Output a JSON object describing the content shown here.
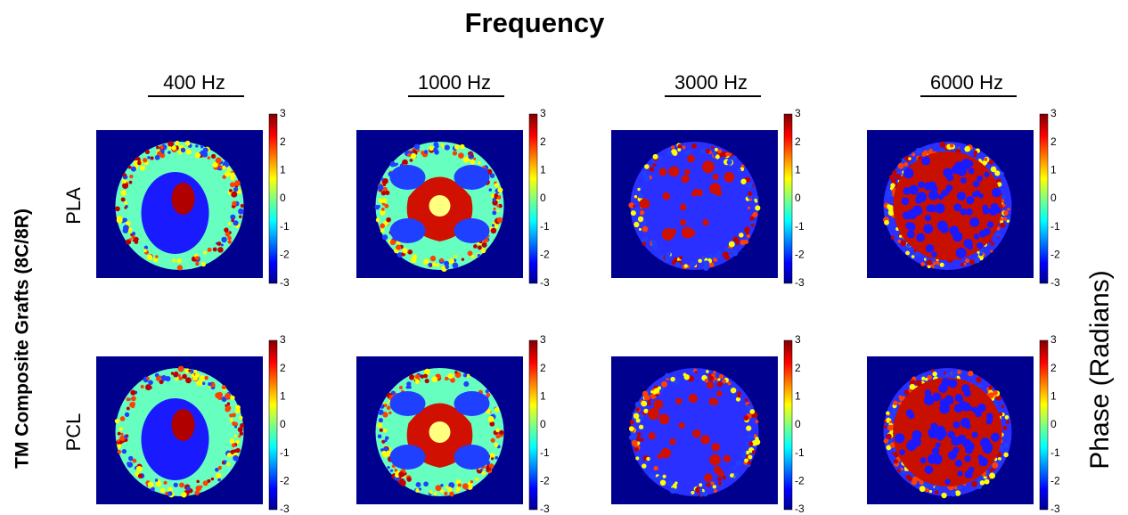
{
  "title": "Frequency",
  "y_label": "TM Composite Grafts (8C/8R)",
  "colorbar_label": "Phase (Radians)",
  "columns": [
    "400 Hz",
    "1000 Hz",
    "3000 Hz",
    "6000 Hz"
  ],
  "rows": [
    "PLA",
    "PCL"
  ],
  "colorbar_ticks": [
    3,
    2,
    1,
    0,
    -1,
    -2,
    -3
  ]
}
